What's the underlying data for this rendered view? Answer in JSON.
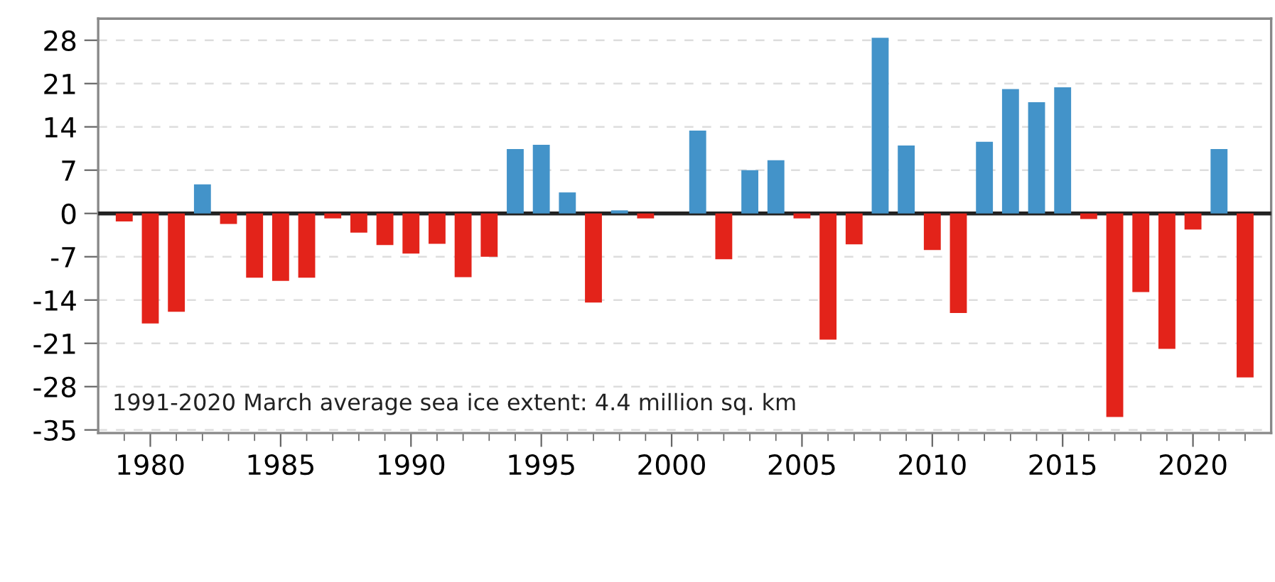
{
  "chart_data": {
    "type": "bar",
    "x": [
      1979,
      1980,
      1981,
      1982,
      1983,
      1984,
      1985,
      1986,
      1987,
      1988,
      1989,
      1990,
      1991,
      1992,
      1993,
      1994,
      1995,
      1996,
      1997,
      1998,
      1999,
      2000,
      2001,
      2002,
      2003,
      2004,
      2005,
      2006,
      2007,
      2008,
      2009,
      2010,
      2011,
      2012,
      2013,
      2014,
      2015,
      2016,
      2017,
      2018,
      2019,
      2020,
      2021,
      2022
    ],
    "values": [
      -1.3,
      -17.8,
      -15.9,
      4.7,
      -1.7,
      -10.4,
      -10.9,
      -10.4,
      -0.8,
      -3.1,
      -5.1,
      -6.5,
      -4.9,
      -10.3,
      -7.0,
      10.4,
      11.1,
      3.4,
      -14.4,
      0.5,
      -0.8,
      0,
      13.4,
      -7.4,
      7.0,
      8.6,
      -0.8,
      -20.4,
      -5.0,
      28.4,
      11.0,
      -5.9,
      -16.1,
      11.6,
      20.1,
      18.0,
      20.4,
      -0.9,
      -32.9,
      -12.7,
      -21.9,
      -2.6,
      10.4,
      -26.5
    ],
    "colors": [
      "#e3231a",
      "#e3231a",
      "#e3231a",
      "#4393c9",
      "#e3231a",
      "#e3231a",
      "#e3231a",
      "#e3231a",
      "#e3231a",
      "#e3231a",
      "#e3231a",
      "#e3231a",
      "#e3231a",
      "#e3231a",
      "#e3231a",
      "#4393c9",
      "#4393c9",
      "#4393c9",
      "#e3231a",
      "#4393c9",
      "#e3231a",
      "#4393c9",
      "#4393c9",
      "#e3231a",
      "#4393c9",
      "#4393c9",
      "#e3231a",
      "#e3231a",
      "#e3231a",
      "#4393c9",
      "#4393c9",
      "#e3231a",
      "#e3231a",
      "#4393c9",
      "#4393c9",
      "#4393c9",
      "#4393c9",
      "#e3231a",
      "#e3231a",
      "#e3231a",
      "#e3231a",
      "#e3231a",
      "#4393c9",
      "#e3231a"
    ],
    "xlim": [
      1978,
      2023
    ],
    "xticks": [
      1980,
      1985,
      1990,
      1995,
      2000,
      2005,
      2010,
      2015,
      2020
    ],
    "ylim": [
      -35.5,
      31.5
    ],
    "yticks": [
      -35,
      -28,
      -21,
      -14,
      -7,
      0,
      7,
      14,
      21,
      28
    ],
    "ref_lines": [
      {
        "axis": "y",
        "value": 0,
        "color": "#222222",
        "line_style": "solid"
      }
    ],
    "grid": "y",
    "annotations": [
      "1991-2020 March average sea ice extent: 4.4 million sq. km"
    ]
  }
}
